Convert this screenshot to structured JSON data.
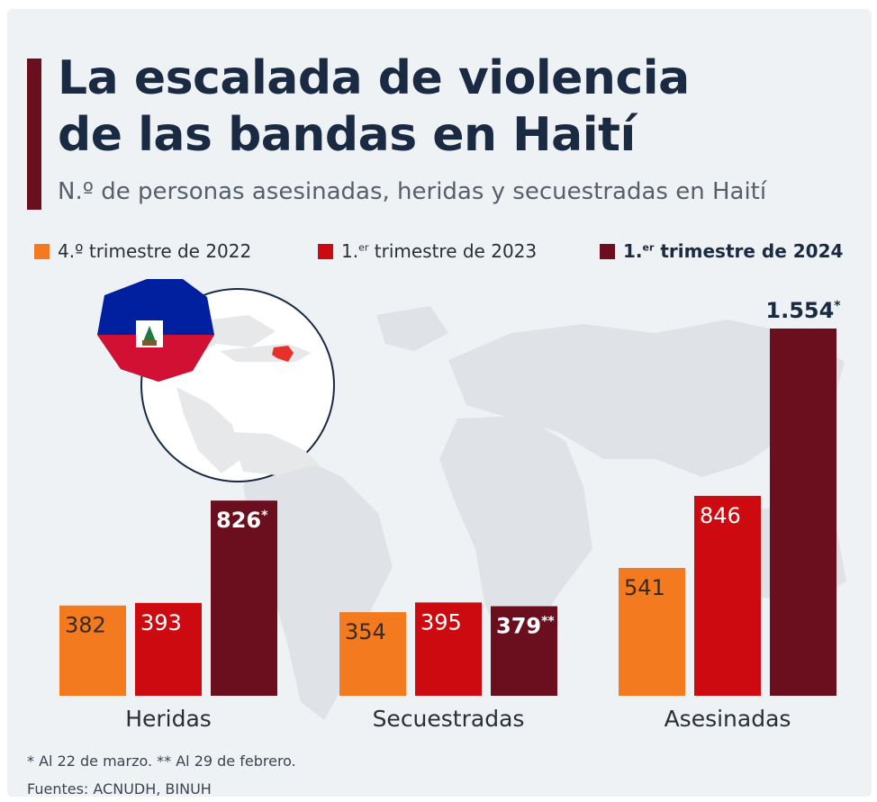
{
  "header": {
    "title_line1": "La escalada de violencia",
    "title_line2": "de las bandas en Haití",
    "subtitle": "N.º de personas asesinadas, heridas y secuestradas en Haití"
  },
  "legend": [
    {
      "pre": "4.º trimestre de 2022",
      "sup": "",
      "post": "",
      "color": "#f47a20"
    },
    {
      "pre": "1.",
      "sup": "er",
      "post": " trimestre de 2023",
      "color": "#cc0a10"
    },
    {
      "pre": "1.",
      "sup": "er",
      "post": " trimestre de 2024",
      "color": "#6b0f1f"
    }
  ],
  "chart_data": {
    "type": "bar",
    "title": "La escalada de violencia de las bandas en Haití",
    "subtitle": "N.º de personas asesinadas, heridas y secuestradas en Haití",
    "categories": [
      "Heridas",
      "Secuestradas",
      "Asesinadas"
    ],
    "series": [
      {
        "name": "4.º trimestre de 2022",
        "color": "#f47a20",
        "values": [
          382,
          354,
          541
        ],
        "labels": [
          "382",
          "354",
          "541"
        ]
      },
      {
        "name": "1.er trimestre de 2023",
        "color": "#cc0a10",
        "values": [
          393,
          395,
          846
        ],
        "labels": [
          "393",
          "395",
          "846"
        ]
      },
      {
        "name": "1.er trimestre de 2024",
        "color": "#6b0f1f",
        "values": [
          826,
          379,
          1554
        ],
        "labels": [
          "826*",
          "379**",
          "1.554*"
        ]
      }
    ],
    "grid": false,
    "legend_position": "top"
  },
  "footnote": "* Al 22 de marzo.   ** Al 29 de febrero.",
  "sources": "Fuentes: ACNUDH, BINUH"
}
